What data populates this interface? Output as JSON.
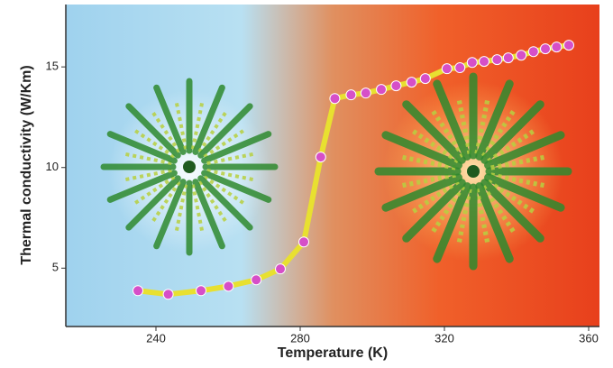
{
  "chart_data": {
    "type": "line",
    "x_label": "Temperature (K)",
    "y_label": "Thermal conductivity (W/Km)",
    "xlim": [
      215,
      363
    ],
    "xticks": [
      240,
      280,
      320,
      360
    ],
    "ylim": [
      2.1,
      18.1
    ],
    "yticks": [
      5,
      10,
      15
    ],
    "series": [
      {
        "color": "#d64fc8",
        "line_color": "#e8e030",
        "x": [
          235.0,
          243.4,
          252.5,
          260.1,
          267.8,
          274.5,
          281.0,
          285.7,
          289.6,
          294.1,
          298.2,
          302.5,
          306.6,
          310.9,
          314.7,
          320.7,
          324.3,
          327.7,
          331.0,
          334.6,
          337.7,
          341.3,
          344.7,
          348.0,
          351.1,
          354.5
        ],
        "values": [
          3.88,
          3.7,
          3.88,
          4.1,
          4.42,
          4.96,
          6.3,
          10.52,
          13.43,
          13.61,
          13.7,
          13.88,
          14.06,
          14.24,
          14.42,
          14.91,
          14.96,
          15.22,
          15.27,
          15.36,
          15.45,
          15.58,
          15.76,
          15.9,
          15.99,
          16.08
        ]
      }
    ]
  }
}
